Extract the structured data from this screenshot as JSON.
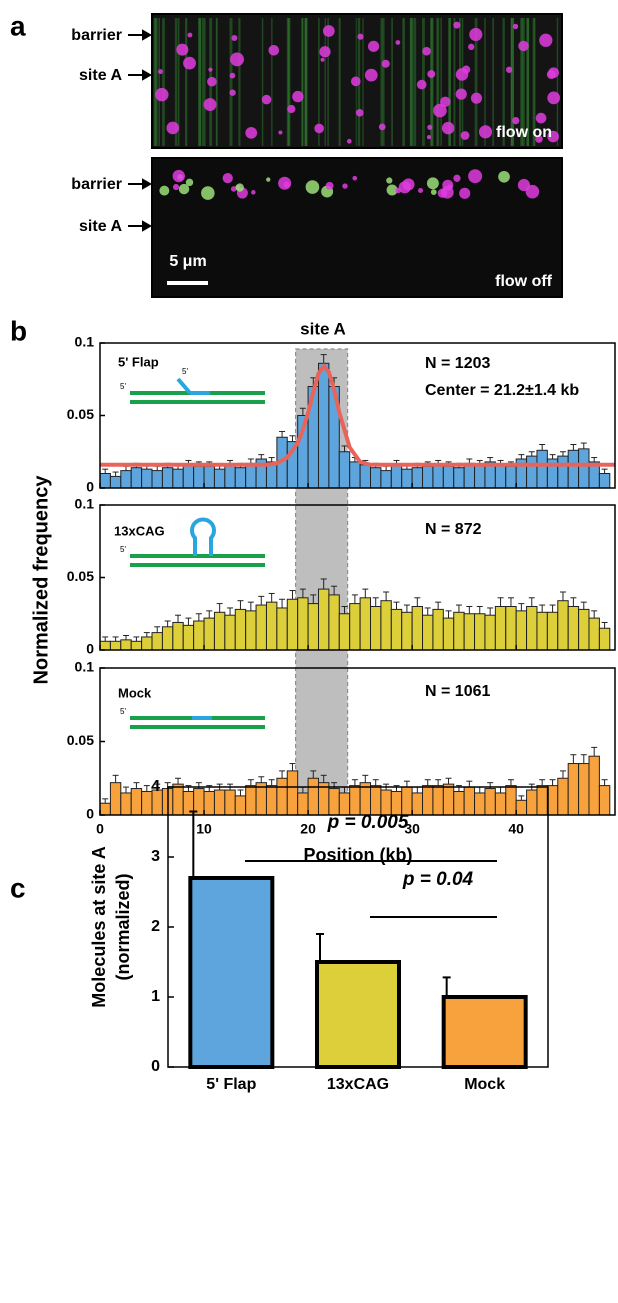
{
  "panel_labels": [
    "a",
    "b",
    "c"
  ],
  "images": {
    "top": {
      "labels": [
        "barrier",
        "site A"
      ],
      "caption": "flow on"
    },
    "bottom": {
      "labels": [
        "barrier",
        "site A"
      ],
      "caption": "flow off",
      "scale_label": "5 μm"
    }
  },
  "panel_b": {
    "ylabel": "Normalized frequency",
    "shade": [
      18.8,
      23.8
    ],
    "shade_label": "site A"
  },
  "chart_data": [
    {
      "type": "histogram",
      "label": "5' Flap",
      "strand_label": "5'",
      "n_label": "N = 1203",
      "center_label": "Center = 21.2±1.4 kb",
      "color": "#5da5dc",
      "bins": [
        0,
        1,
        2,
        3,
        4,
        5,
        6,
        7,
        8,
        9,
        10,
        11,
        12,
        13,
        14,
        15,
        16,
        17,
        18,
        19,
        20,
        21,
        22,
        23,
        24,
        25,
        26,
        27,
        28,
        29,
        30,
        31,
        32,
        33,
        34,
        35,
        36,
        37,
        38,
        39,
        40,
        41,
        42,
        43,
        44,
        45,
        46,
        47,
        48,
        49
      ],
      "values": [
        0.01,
        0.008,
        0.012,
        0.014,
        0.013,
        0.012,
        0.014,
        0.013,
        0.016,
        0.015,
        0.015,
        0.013,
        0.016,
        0.014,
        0.017,
        0.02,
        0.018,
        0.035,
        0.032,
        0.05,
        0.07,
        0.086,
        0.07,
        0.025,
        0.018,
        0.016,
        0.014,
        0.012,
        0.016,
        0.013,
        0.014,
        0.015,
        0.016,
        0.015,
        0.014,
        0.017,
        0.016,
        0.018,
        0.016,
        0.015,
        0.02,
        0.022,
        0.026,
        0.02,
        0.022,
        0.026,
        0.027,
        0.018,
        0.01
      ],
      "errors": [
        0.003,
        0.003,
        0.003,
        0.003,
        0.003,
        0.003,
        0.003,
        0.003,
        0.003,
        0.003,
        0.003,
        0.003,
        0.003,
        0.003,
        0.003,
        0.003,
        0.003,
        0.004,
        0.004,
        0.005,
        0.006,
        0.006,
        0.006,
        0.004,
        0.003,
        0.003,
        0.003,
        0.003,
        0.003,
        0.003,
        0.003,
        0.003,
        0.003,
        0.003,
        0.003,
        0.003,
        0.003,
        0.003,
        0.003,
        0.003,
        0.003,
        0.003,
        0.004,
        0.003,
        0.003,
        0.004,
        0.004,
        0.003,
        0.003
      ],
      "fit": {
        "color": "#e8645a",
        "x": [
          0,
          16,
          17,
          18,
          19,
          19.5,
          20,
          20.5,
          21,
          21.5,
          22,
          22.5,
          23,
          24,
          25,
          26,
          49.5
        ],
        "values": [
          0.016,
          0.016,
          0.017,
          0.021,
          0.031,
          0.04,
          0.052,
          0.066,
          0.079,
          0.084,
          0.08,
          0.068,
          0.052,
          0.028,
          0.018,
          0.016,
          0.016
        ]
      },
      "xlim": [
        0,
        49.5
      ],
      "xticks": [
        0,
        10,
        20,
        30,
        40
      ],
      "ylim": [
        0,
        0.1
      ],
      "yticks": [
        0,
        0.05,
        0.1
      ]
    },
    {
      "type": "histogram",
      "label": "13xCAG",
      "strand_label": "5'",
      "n_label": "N = 872",
      "color": "#dccf3a",
      "bins": [
        0,
        1,
        2,
        3,
        4,
        5,
        6,
        7,
        8,
        9,
        10,
        11,
        12,
        13,
        14,
        15,
        16,
        17,
        18,
        19,
        20,
        21,
        22,
        23,
        24,
        25,
        26,
        27,
        28,
        29,
        30,
        31,
        32,
        33,
        34,
        35,
        36,
        37,
        38,
        39,
        40,
        41,
        42,
        43,
        44,
        45,
        46,
        47,
        48,
        49
      ],
      "values": [
        0.006,
        0.006,
        0.007,
        0.006,
        0.009,
        0.012,
        0.016,
        0.019,
        0.017,
        0.02,
        0.022,
        0.026,
        0.024,
        0.028,
        0.027,
        0.031,
        0.033,
        0.029,
        0.035,
        0.036,
        0.032,
        0.042,
        0.038,
        0.025,
        0.032,
        0.036,
        0.03,
        0.034,
        0.028,
        0.026,
        0.03,
        0.024,
        0.028,
        0.022,
        0.026,
        0.025,
        0.025,
        0.024,
        0.03,
        0.03,
        0.027,
        0.03,
        0.026,
        0.026,
        0.034,
        0.03,
        0.028,
        0.022,
        0.015
      ],
      "errors": [
        0.003,
        0.003,
        0.003,
        0.003,
        0.003,
        0.004,
        0.004,
        0.005,
        0.005,
        0.005,
        0.005,
        0.006,
        0.005,
        0.006,
        0.006,
        0.006,
        0.006,
        0.006,
        0.006,
        0.006,
        0.006,
        0.007,
        0.006,
        0.005,
        0.006,
        0.006,
        0.006,
        0.006,
        0.005,
        0.005,
        0.006,
        0.005,
        0.005,
        0.005,
        0.005,
        0.005,
        0.005,
        0.005,
        0.006,
        0.006,
        0.005,
        0.006,
        0.005,
        0.005,
        0.006,
        0.006,
        0.005,
        0.005,
        0.004
      ],
      "xlim": [
        0,
        49.5
      ],
      "xticks": [
        0,
        10,
        20,
        30,
        40
      ],
      "ylim": [
        0,
        0.1
      ],
      "yticks": [
        0,
        0.05,
        0.1
      ]
    },
    {
      "type": "histogram",
      "label": "Mock",
      "strand_label": "5'",
      "n_label": "N = 1061",
      "color": "#f7a23c",
      "bins": [
        0,
        1,
        2,
        3,
        4,
        5,
        6,
        7,
        8,
        9,
        10,
        11,
        12,
        13,
        14,
        15,
        16,
        17,
        18,
        19,
        20,
        21,
        22,
        23,
        24,
        25,
        26,
        27,
        28,
        29,
        30,
        31,
        32,
        33,
        34,
        35,
        36,
        37,
        38,
        39,
        40,
        41,
        42,
        43,
        44,
        45,
        46,
        47,
        48,
        49
      ],
      "values": [
        0.008,
        0.022,
        0.015,
        0.018,
        0.016,
        0.017,
        0.018,
        0.021,
        0.016,
        0.018,
        0.016,
        0.017,
        0.017,
        0.013,
        0.02,
        0.022,
        0.02,
        0.025,
        0.03,
        0.015,
        0.025,
        0.022,
        0.018,
        0.015,
        0.02,
        0.022,
        0.02,
        0.017,
        0.016,
        0.019,
        0.015,
        0.02,
        0.02,
        0.021,
        0.016,
        0.019,
        0.015,
        0.018,
        0.015,
        0.02,
        0.01,
        0.017,
        0.02,
        0.02,
        0.025,
        0.035,
        0.035,
        0.04,
        0.02
      ],
      "errors": [
        0.003,
        0.005,
        0.004,
        0.004,
        0.004,
        0.004,
        0.004,
        0.004,
        0.004,
        0.004,
        0.004,
        0.004,
        0.004,
        0.004,
        0.004,
        0.004,
        0.004,
        0.005,
        0.005,
        0.004,
        0.005,
        0.005,
        0.004,
        0.004,
        0.004,
        0.005,
        0.004,
        0.004,
        0.004,
        0.004,
        0.004,
        0.004,
        0.004,
        0.004,
        0.004,
        0.004,
        0.004,
        0.004,
        0.004,
        0.004,
        0.003,
        0.004,
        0.004,
        0.004,
        0.005,
        0.006,
        0.006,
        0.006,
        0.004
      ],
      "xlim": [
        0,
        49.5
      ],
      "xticks": [
        0,
        10,
        20,
        30,
        40
      ],
      "ylim": [
        0,
        0.1
      ],
      "yticks": [
        0,
        0.05,
        0.1
      ],
      "xlabel": "Position (kb)"
    },
    {
      "type": "bar",
      "categories": [
        "5' Flap",
        "13xCAG",
        "Mock"
      ],
      "values": [
        2.7,
        1.5,
        1.0
      ],
      "errors": [
        0.95,
        0.4,
        0.28
      ],
      "colors": [
        "#5da5dc",
        "#dccf3a",
        "#f7a23c"
      ],
      "ylim": [
        0,
        4
      ],
      "yticks": [
        0,
        1,
        2,
        3,
        4
      ],
      "ylabel": [
        "Molecules at site A",
        "(normalized)"
      ],
      "annotations": [
        "p = 0.005",
        "p = 0.04"
      ]
    }
  ]
}
